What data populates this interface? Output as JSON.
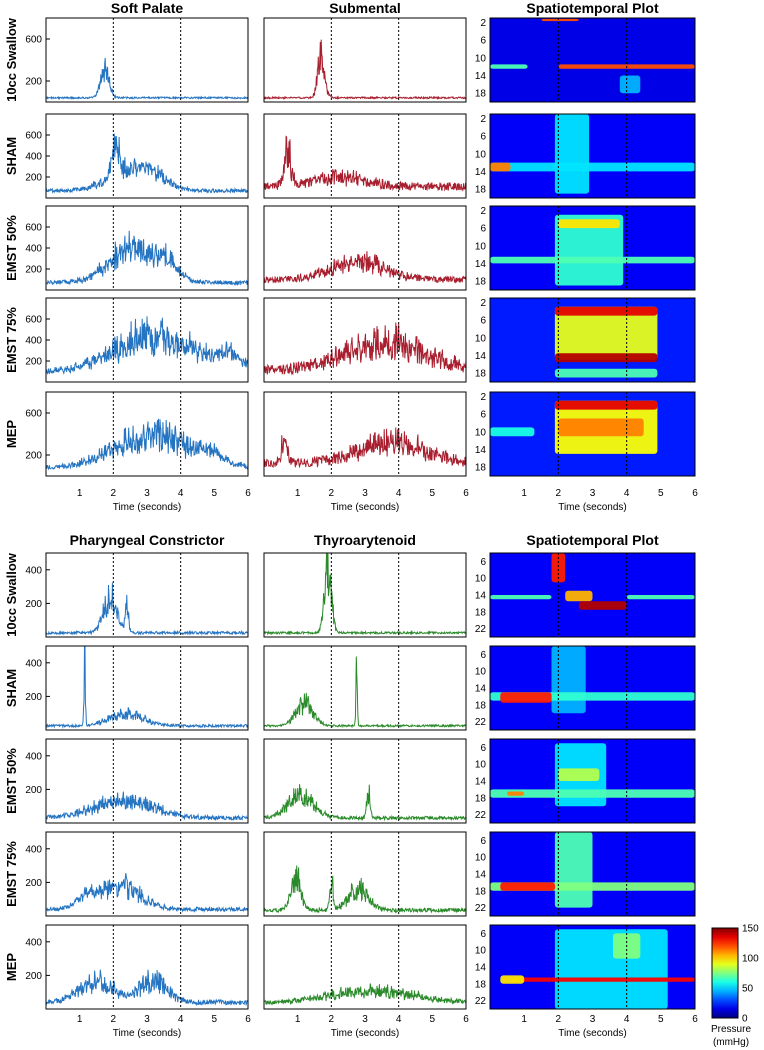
{
  "chart_data": [
    {
      "type": "line+heatmap",
      "panel_group": "top",
      "columns": [
        "Soft Palate",
        "Submental",
        "Spatiotemporal Plot"
      ],
      "rows": [
        "10cc Swallow",
        "SHAM",
        "EMST 50%",
        "EMST 75%",
        "MEP"
      ],
      "series_colors": [
        "#2474c2",
        "#a81e2e"
      ],
      "xlim": [
        0,
        6
      ],
      "xticks": [
        1,
        2,
        3,
        4,
        5,
        6
      ],
      "xlabel": "Time (seconds)",
      "event_lines": [
        2,
        4
      ],
      "ylim": [
        0,
        800
      ],
      "yticks": [
        [
          200,
          600
        ],
        [
          200,
          400,
          600
        ],
        [
          200,
          400,
          600
        ],
        [
          200,
          400,
          600
        ],
        [
          200,
          600
        ]
      ],
      "sensor_ticks": [
        2,
        6,
        10,
        14,
        18
      ],
      "sensor_range": [
        1,
        20
      ],
      "traces": {
        "Soft Palate": [
          {
            "base": 40,
            "noise": 8,
            "events": [
              [
                1.75,
                0.12,
                280
              ]
            ]
          },
          {
            "base": 70,
            "noise": 18,
            "events": [
              [
                2.05,
                0.1,
                380
              ],
              [
                2.4,
                0.6,
                180
              ],
              [
                3.2,
                0.45,
                120
              ]
            ]
          },
          {
            "base": 70,
            "noise": 20,
            "events": [
              [
                2.6,
                0.7,
                320
              ],
              [
                3.6,
                0.3,
                120
              ]
            ]
          },
          {
            "base": 90,
            "noise": 25,
            "events": [
              [
                3.2,
                1.2,
                340
              ],
              [
                5.5,
                0.4,
                130
              ]
            ]
          },
          {
            "base": 80,
            "noise": 22,
            "events": [
              [
                3.2,
                1.1,
                300
              ],
              [
                4.9,
                0.3,
                90
              ]
            ]
          }
        ],
        "Submental": [
          {
            "base": 40,
            "noise": 8,
            "events": [
              [
                1.7,
                0.1,
                400
              ]
            ]
          },
          {
            "base": 110,
            "noise": 40,
            "events": [
              [
                0.7,
                0.1,
                280
              ],
              [
                2.2,
                0.8,
                80
              ]
            ]
          },
          {
            "base": 100,
            "noise": 30,
            "events": [
              [
                2.8,
                0.8,
                170
              ]
            ]
          },
          {
            "base": 110,
            "noise": 45,
            "events": [
              [
                3.6,
                1.2,
                260
              ]
            ]
          },
          {
            "base": 120,
            "noise": 40,
            "events": [
              [
                0.6,
                0.1,
                180
              ],
              [
                3.8,
                1.0,
                200
              ]
            ]
          }
        ]
      },
      "heatmaps": [
        {
          "background": 0.1,
          "bands": [
            [
              1.5,
              2.6,
              1.2,
              1.7,
              0.8
            ],
            [
              0.0,
              1.1,
              11.5,
              12.5,
              0.45
            ],
            [
              2.0,
              6.0,
              11.5,
              12.5,
              0.8
            ],
            [
              3.8,
              4.4,
              14.0,
              18.0,
              0.3
            ]
          ]
        },
        {
          "background": 0.12,
          "bands": [
            [
              1.9,
              2.9,
              1.0,
              19.0,
              0.35
            ],
            [
              0.0,
              6.0,
              12.0,
              14.0,
              0.35
            ],
            [
              0.0,
              0.6,
              12.0,
              14.0,
              0.75
            ]
          ]
        },
        {
          "background": 0.12,
          "bands": [
            [
              1.9,
              3.9,
              3.0,
              19.0,
              0.42
            ],
            [
              2.0,
              3.8,
              4.0,
              6.0,
              0.65
            ],
            [
              0.0,
              6.0,
              12.5,
              14.0,
              0.45
            ]
          ]
        },
        {
          "background": 0.15,
          "bands": [
            [
              1.9,
              4.9,
              3.0,
              15.0,
              0.6
            ],
            [
              1.9,
              4.9,
              3.0,
              5.0,
              0.9
            ],
            [
              1.9,
              4.9,
              13.5,
              15.5,
              0.95
            ],
            [
              1.9,
              4.9,
              17.0,
              19.0,
              0.45
            ]
          ]
        },
        {
          "background": 0.15,
          "bands": [
            [
              1.9,
              4.9,
              3.0,
              15.0,
              0.62
            ],
            [
              1.9,
              4.9,
              3.0,
              5.0,
              0.9
            ],
            [
              2.0,
              4.5,
              7.0,
              11.0,
              0.75
            ],
            [
              0.0,
              1.3,
              9.0,
              11.0,
              0.4
            ]
          ]
        }
      ],
      "column_titles": [
        "Soft Palate",
        "Submental",
        "Spatiotemporal Plot"
      ]
    },
    {
      "type": "line+heatmap",
      "panel_group": "bottom",
      "columns": [
        "Pharyngeal Constrictor",
        "Thyroarytenoid",
        "Spatiotemporal Plot"
      ],
      "rows": [
        "10cc Swallow",
        "SHAM",
        "EMST 50%",
        "EMST 75%",
        "MEP"
      ],
      "series_colors": [
        "#2474c2",
        "#2a8a2a"
      ],
      "xlim": [
        0,
        6
      ],
      "xticks": [
        1,
        2,
        3,
        4,
        5,
        6
      ],
      "xlabel": "Time (seconds)",
      "event_lines": [
        2,
        4
      ],
      "ylim": [
        0,
        500
      ],
      "yticks": [
        [
          200,
          400
        ],
        [
          200,
          400
        ],
        [
          200,
          400
        ],
        [
          200,
          400
        ],
        [
          200,
          400
        ]
      ],
      "sensor_ticks": [
        6,
        10,
        14,
        18,
        22
      ],
      "sensor_range": [
        4,
        24
      ],
      "traces": {
        "Pharyngeal Constrictor": [
          {
            "base": 25,
            "noise": 8,
            "events": [
              [
                1.9,
                0.2,
                200
              ],
              [
                2.4,
                0.05,
                150
              ]
            ]
          },
          {
            "base": 25,
            "noise": 8,
            "events": [
              [
                1.15,
                0.02,
                460
              ],
              [
                2.4,
                0.5,
                70
              ]
            ]
          },
          {
            "base": 30,
            "noise": 12,
            "events": [
              [
                2.3,
                0.9,
                100
              ]
            ]
          },
          {
            "base": 40,
            "noise": 12,
            "events": [
              [
                2.2,
                0.6,
                140
              ],
              [
                1.2,
                0.3,
                60
              ]
            ]
          },
          {
            "base": 40,
            "noise": 15,
            "events": [
              [
                1.5,
                0.5,
                120
              ],
              [
                3.2,
                0.4,
                130
              ]
            ]
          }
        ],
        "Thyroarytenoid": [
          {
            "base": 25,
            "noise": 6,
            "events": [
              [
                1.9,
                0.1,
                400
              ]
            ]
          },
          {
            "base": 25,
            "noise": 6,
            "events": [
              [
                1.2,
                0.25,
                130
              ],
              [
                2.75,
                0.02,
                380
              ]
            ]
          },
          {
            "base": 30,
            "noise": 10,
            "events": [
              [
                1.1,
                0.4,
                130
              ],
              [
                3.1,
                0.05,
                160
              ]
            ]
          },
          {
            "base": 35,
            "noise": 12,
            "events": [
              [
                0.95,
                0.15,
                200
              ],
              [
                2.0,
                0.05,
                200
              ],
              [
                2.8,
                0.3,
                120
              ]
            ]
          },
          {
            "base": 35,
            "noise": 12,
            "events": [
              [
                3.2,
                1.3,
                70
              ]
            ]
          }
        ]
      },
      "heatmaps": [
        {
          "background": 0.12,
          "bands": [
            [
              1.8,
              2.2,
              4.0,
              11.0,
              0.85
            ],
            [
              2.2,
              3.0,
              13.0,
              15.5,
              0.7
            ],
            [
              2.6,
              4.0,
              15.5,
              17.5,
              0.95
            ],
            [
              0.0,
              1.8,
              14.0,
              15.0,
              0.45
            ],
            [
              4.0,
              6.0,
              14.0,
              15.0,
              0.45
            ]
          ]
        },
        {
          "background": 0.12,
          "bands": [
            [
              1.8,
              2.8,
              4.0,
              20.0,
              0.3
            ],
            [
              0.0,
              6.0,
              15.0,
              17.0,
              0.42
            ],
            [
              0.3,
              1.8,
              15.0,
              17.5,
              0.85
            ]
          ]
        },
        {
          "background": 0.12,
          "bands": [
            [
              1.9,
              3.4,
              5.0,
              20.0,
              0.35
            ],
            [
              0.0,
              6.0,
              16.0,
              18.0,
              0.45
            ],
            [
              0.5,
              1.0,
              16.5,
              17.5,
              0.75
            ],
            [
              2.0,
              3.2,
              11.0,
              14.0,
              0.55
            ]
          ]
        },
        {
          "background": 0.12,
          "bands": [
            [
              1.9,
              3.0,
              4.0,
              22.0,
              0.45
            ],
            [
              0.0,
              6.0,
              16.0,
              18.0,
              0.5
            ],
            [
              0.3,
              1.9,
              16.0,
              18.0,
              0.85
            ]
          ]
        },
        {
          "background": 0.12,
          "bands": [
            [
              1.9,
              5.2,
              5.0,
              24.0,
              0.35
            ],
            [
              0.6,
              6.0,
              16.5,
              17.5,
              0.88
            ],
            [
              3.6,
              4.4,
              6.0,
              12.0,
              0.5
            ],
            [
              0.3,
              1.0,
              16.0,
              18.0,
              0.65
            ]
          ]
        }
      ],
      "column_titles": [
        "Pharyngeal Constrictor",
        "Thyroarytenoid",
        "Spatiotemporal Plot"
      ]
    }
  ],
  "colorbar": {
    "colormap": "jet",
    "range": [
      0,
      150
    ],
    "ticks": [
      0,
      50,
      100,
      150
    ],
    "label_line1": "Pressure",
    "label_line2": "(mmHg)"
  }
}
